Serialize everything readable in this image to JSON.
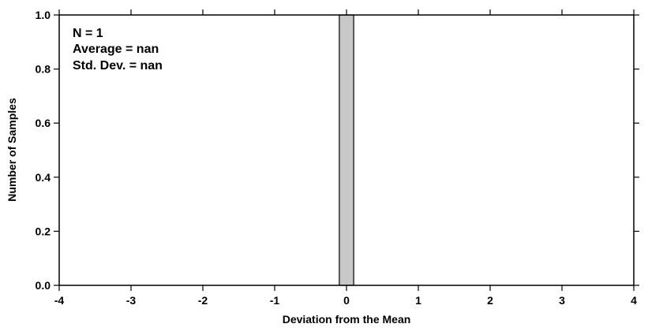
{
  "chart_data": {
    "type": "bar",
    "title": "",
    "xlabel": "Deviation from the Mean",
    "ylabel": "Number of Samples",
    "xlim": [
      -4,
      4
    ],
    "ylim": [
      0,
      1.0
    ],
    "xticks": [
      "-4",
      "-3",
      "-2",
      "-1",
      "0",
      "1",
      "2",
      "3",
      "4"
    ],
    "yticks": [
      "0.0",
      "0.2",
      "0.4",
      "0.6",
      "0.8",
      "1.0"
    ],
    "bins": [
      {
        "x0": -0.1,
        "x1": 0.1,
        "value": 1
      }
    ],
    "bar_color": "#c8c8c8",
    "annotations": [
      "N = 1",
      "Average = nan",
      "Std. Dev. = nan"
    ],
    "grid": false,
    "legend": "none"
  }
}
